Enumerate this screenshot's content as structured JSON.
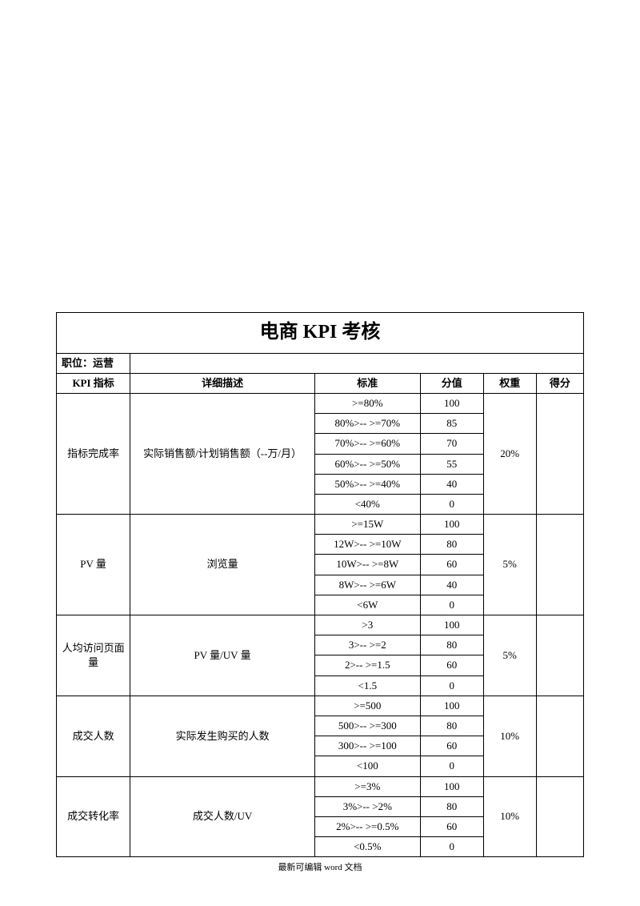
{
  "title": "电商 KPI 考核",
  "position_label": "职位：运营",
  "headers": {
    "kpi": "KPI 指标",
    "desc": "详细描述",
    "standard": "标准",
    "score": "分值",
    "weight": "权重",
    "result": "得分"
  },
  "groups": [
    {
      "kpi": "指标完成率",
      "desc": "实际销售额/计划销售额（--万/月）",
      "weight": "20%",
      "rows": [
        {
          "std": ">=80%",
          "score": "100"
        },
        {
          "std": "80%>-- >=70%",
          "score": "85"
        },
        {
          "std": "70%>-- >=60%",
          "score": "70"
        },
        {
          "std": "60%>-- >=50%",
          "score": "55"
        },
        {
          "std": "50%>-- >=40%",
          "score": "40"
        },
        {
          "std": "<40%",
          "score": "0"
        }
      ]
    },
    {
      "kpi": "PV 量",
      "desc": "浏览量",
      "weight": "5%",
      "rows": [
        {
          "std": ">=15W",
          "score": "100"
        },
        {
          "std": "12W>-- >=10W",
          "score": "80"
        },
        {
          "std": "10W>-- >=8W",
          "score": "60"
        },
        {
          "std": "8W>-- >=6W",
          "score": "40"
        },
        {
          "std": "<6W",
          "score": "0"
        }
      ]
    },
    {
      "kpi": "人均访问页面量",
      "desc": "PV 量/UV 量",
      "weight": "5%",
      "rows": [
        {
          "std": ">3",
          "score": "100"
        },
        {
          "std": "3>-- >=2",
          "score": "80"
        },
        {
          "std": "2>-- >=1.5",
          "score": "60"
        },
        {
          "std": "<1.5",
          "score": "0"
        }
      ]
    },
    {
      "kpi": "成交人数",
      "desc": "实际发生购买的人数",
      "weight": "10%",
      "rows": [
        {
          "std": ">=500",
          "score": "100"
        },
        {
          "std": "500>-- >=300",
          "score": "80"
        },
        {
          "std": "300>-- >=100",
          "score": "60"
        },
        {
          "std": "<100",
          "score": "0"
        }
      ]
    },
    {
      "kpi": "成交转化率",
      "desc": "成交人数/UV",
      "weight": "10%",
      "rows": [
        {
          "std": ">=3%",
          "score": "100"
        },
        {
          "std": "3%>-- >2%",
          "score": "80"
        },
        {
          "std": "2%>-- >=0.5%",
          "score": "60"
        },
        {
          "std": "<0.5%",
          "score": "0"
        }
      ]
    }
  ],
  "footer": "最新可编辑 word 文档"
}
